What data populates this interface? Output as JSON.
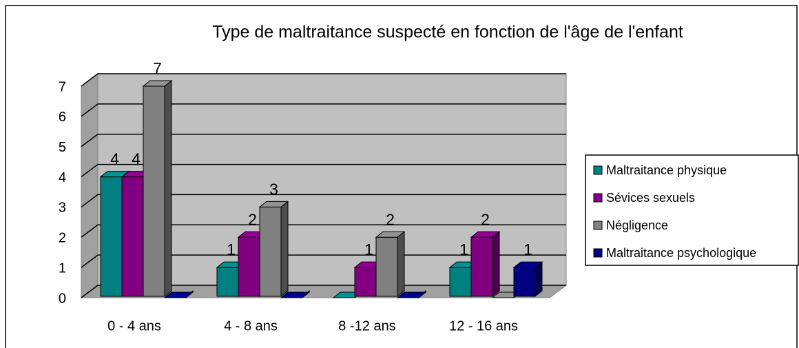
{
  "chart_data": {
    "type": "bar3d",
    "title": "Type de maltraitance suspecté en fonction de l'âge de l'enfant",
    "categories": [
      "0 - 4 ans",
      "4 - 8 ans",
      "8 -12 ans",
      "12 - 16 ans"
    ],
    "series": [
      {
        "name": "Maltraitance physique",
        "color": "#008080",
        "values": [
          4,
          1,
          0,
          1
        ]
      },
      {
        "name": "Sévices sexuels",
        "color": "#800080",
        "values": [
          4,
          2,
          1,
          2
        ]
      },
      {
        "name": "Négligence",
        "color": "#808080",
        "values": [
          7,
          3,
          2,
          0
        ]
      },
      {
        "name": "Maltraitance psychologique",
        "color": "#000080",
        "values": [
          0,
          0,
          0,
          1
        ]
      }
    ],
    "ylim": [
      0,
      7
    ],
    "yticks": [
      0,
      1,
      2,
      3,
      4,
      5,
      6,
      7
    ],
    "grid": true,
    "legend": "right"
  }
}
